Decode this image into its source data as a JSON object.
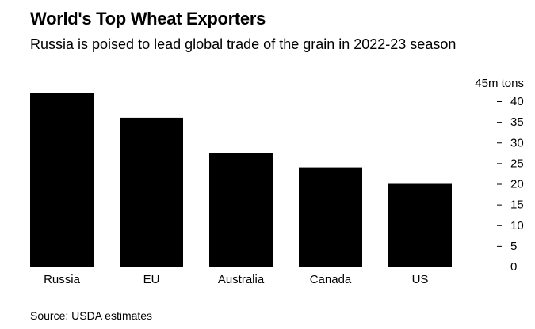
{
  "header": {
    "title": "World's Top Wheat Exporters",
    "subtitle": "Russia is poised to lead global trade of the grain in 2022-23 season"
  },
  "footer": {
    "source": "Source: USDA estimates"
  },
  "chart_data": {
    "type": "bar",
    "title": "World's Top Wheat Exporters",
    "subtitle": "Russia is poised to lead global trade of the grain in 2022-23 season",
    "categories": [
      "Russia",
      "EU",
      "Australia",
      "Canada",
      "US"
    ],
    "values": [
      42,
      36,
      27.5,
      24,
      20
    ],
    "unit_label": "45m tons",
    "ylim": [
      0,
      45
    ],
    "yticks": [
      0,
      5,
      10,
      15,
      20,
      25,
      30,
      35,
      40
    ],
    "grid": false,
    "bar_color": "#000000"
  }
}
